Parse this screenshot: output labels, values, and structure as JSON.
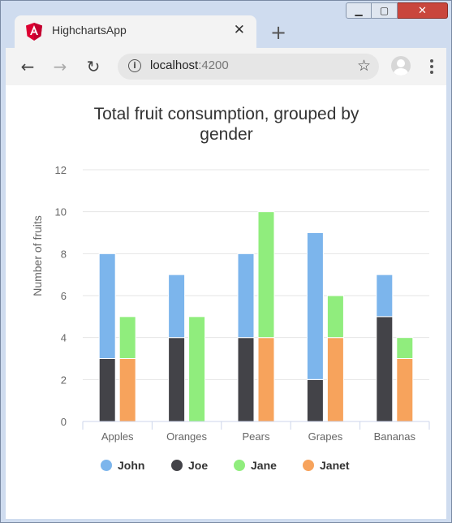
{
  "browser": {
    "tab_title": "HighchartsApp",
    "close_tab_symbol": "✕",
    "new_tab_symbol": "+",
    "url_host": "localhost",
    "url_port": ":4200",
    "icons": [
      "angular-icon",
      "back-icon",
      "forward-icon",
      "reload-icon",
      "info-icon",
      "star-icon",
      "profile-icon",
      "menu-icon"
    ]
  },
  "chart_data": {
    "type": "bar",
    "stacked": true,
    "title": "Total fruit consumption, grouped by gender",
    "ylabel": "Number of fruits",
    "xlabel": "",
    "categories": [
      "Apples",
      "Oranges",
      "Pears",
      "Grapes",
      "Bananas"
    ],
    "ylim": [
      0,
      12
    ],
    "yticks": [
      0,
      2,
      4,
      6,
      8,
      10,
      12
    ],
    "grid": true,
    "legend_position": "bottom",
    "series": [
      {
        "name": "John",
        "stack": "male",
        "color": "#7cb5ec",
        "values": [
          5,
          3,
          4,
          7,
          2
        ]
      },
      {
        "name": "Joe",
        "stack": "male",
        "color": "#434348",
        "values": [
          3,
          4,
          4,
          2,
          5
        ]
      },
      {
        "name": "Jane",
        "stack": "female",
        "color": "#90ed7d",
        "values": [
          2,
          5,
          6,
          2,
          1
        ]
      },
      {
        "name": "Janet",
        "stack": "female",
        "color": "#f7a35c",
        "values": [
          3,
          0,
          4,
          4,
          3
        ]
      }
    ]
  }
}
